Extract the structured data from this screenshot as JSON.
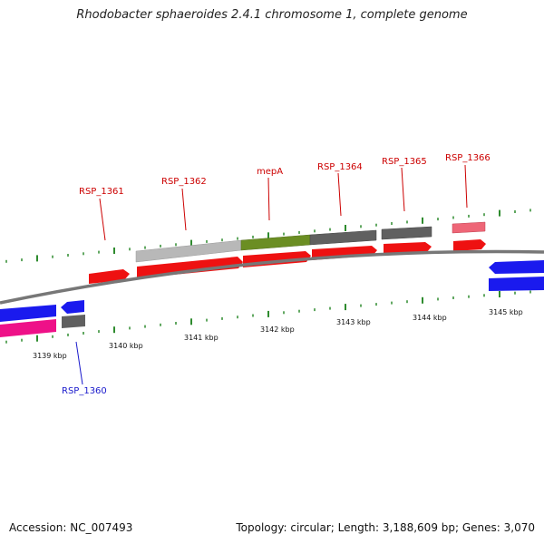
{
  "title": "Rhodobacter sphaeroides 2.4.1 chromosome 1, complete genome",
  "footer": {
    "accession": "Accession: NC_007493",
    "stats": "Topology: circular; Length: 3,188,609 bp; Genes: 3,070"
  },
  "axis": {
    "ticks": [
      {
        "kbp": 3139,
        "label": "3139 kbp"
      },
      {
        "kbp": 3140,
        "label": "3140 kbp"
      },
      {
        "kbp": 3141,
        "label": "3141 kbp"
      },
      {
        "kbp": 3142,
        "label": "3142 kbp"
      },
      {
        "kbp": 3143,
        "label": "3143 kbp"
      },
      {
        "kbp": 3144,
        "label": "3144 kbp"
      },
      {
        "kbp": 3145,
        "label": "3145 kbp"
      }
    ]
  },
  "genes": [
    {
      "label": "RSP_1360",
      "color": "#1a1acc"
    },
    {
      "label": "RSP_1361",
      "color": "#cc0000"
    },
    {
      "label": "RSP_1362",
      "color": "#cc0000"
    },
    {
      "label": "mepA",
      "color": "#cc0000"
    },
    {
      "label": "RSP_1364",
      "color": "#cc0000"
    },
    {
      "label": "RSP_1365",
      "color": "#cc0000"
    },
    {
      "label": "RSP_1366",
      "color": "#cc0000"
    }
  ],
  "colors": {
    "backbone": "#777777",
    "tick_marks": "#2e8b2e",
    "cds_forward": "#ee1111",
    "cds_reverse": "#1a1aee",
    "gene_light_gray": "#b8b8b8",
    "gene_olive": "#6b8e23",
    "gene_dark_gray": "#606060",
    "gene_pink": "#ee6677",
    "gene_magenta": "#ee1188"
  }
}
